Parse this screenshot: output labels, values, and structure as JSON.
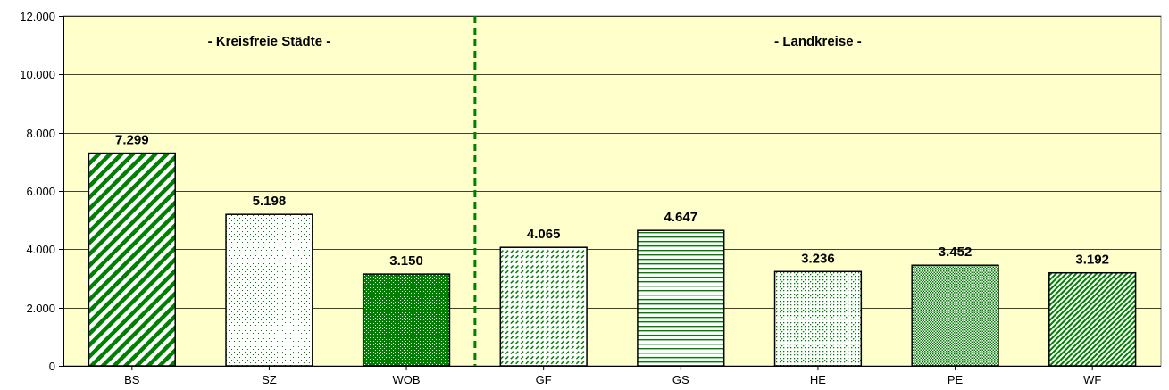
{
  "chart_data": {
    "type": "bar",
    "categories": [
      "BS",
      "SZ",
      "WOB",
      "GF",
      "GS",
      "HE",
      "PE",
      "WF"
    ],
    "values": [
      7299,
      5198,
      3150,
      4065,
      4647,
      3236,
      3452,
      3192
    ],
    "value_labels": [
      "7.299",
      "5.198",
      "3.150",
      "4.065",
      "4.647",
      "3.236",
      "3.452",
      "3.192"
    ],
    "ylim": [
      0,
      12000
    ],
    "y_ticks": [
      0,
      2000,
      4000,
      6000,
      8000,
      10000,
      12000
    ],
    "y_tick_labels": [
      "0",
      "2.000",
      "4.000",
      "6.000",
      "8.000",
      "10.000",
      "12.000"
    ],
    "groups": [
      {
        "label": "- Kreisfreie Städte -",
        "categories": [
          "BS",
          "SZ",
          "WOB"
        ]
      },
      {
        "label": "- Landkreise -",
        "categories": [
          "GF",
          "GS",
          "HE",
          "PE",
          "WF"
        ]
      }
    ],
    "grid": true,
    "colors": {
      "plot_background": "#ffffcc",
      "bar_pattern": "#008000",
      "separator": "#008000",
      "gridline": "#000000"
    },
    "bar_patterns": [
      "wide-diagonal",
      "sparse-dots",
      "dense-check",
      "dashed-diagonal",
      "horizontal-lines",
      "dotted-diamond",
      "fine-check",
      "fine-diagonal"
    ]
  }
}
